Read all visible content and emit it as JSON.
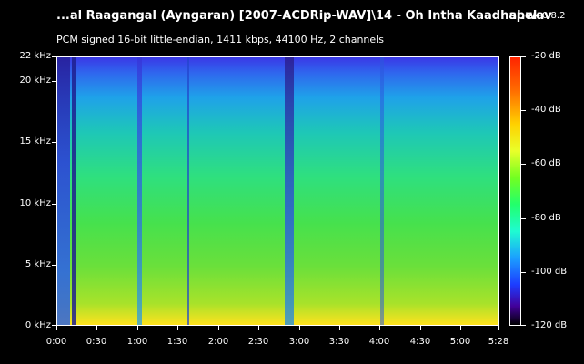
{
  "window": {
    "title": "...al Raagangal (Ayngaran) [2007-ACDRip-WAV]\\14 - Oh Intha Kaadhal.wav",
    "app_name": "spek",
    "app_version": "0.8.2",
    "info": "PCM signed 16-bit little-endian, 1411 kbps, 44100 Hz, 2 channels"
  },
  "axes": {
    "frequency_ticks": [
      "22 kHz",
      "20 kHz",
      "15 kHz",
      "10 kHz",
      "5 kHz",
      "0 kHz"
    ],
    "time_ticks": [
      "0:00",
      "0:30",
      "1:00",
      "1:30",
      "2:00",
      "2:30",
      "3:00",
      "3:30",
      "4:00",
      "4:30",
      "5:00",
      "5:28"
    ],
    "db_ticks": [
      "-20 dB",
      "-40 dB",
      "-60 dB",
      "-80 dB",
      "-100 dB",
      "-120 dB"
    ]
  },
  "colors": {
    "background": "#000000",
    "foreground": "#ffffff"
  }
}
